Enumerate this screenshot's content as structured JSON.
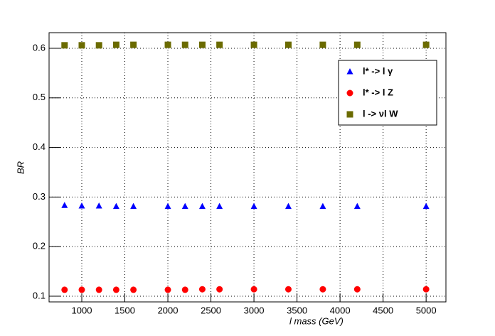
{
  "chart_data": {
    "type": "scatter",
    "x_label": "l mass (GeV)",
    "y_label": "BR",
    "xlim": [
      620,
      5230
    ],
    "ylim": [
      0.0885,
      0.6315
    ],
    "xticks": [
      1000,
      1500,
      2000,
      2500,
      3000,
      3500,
      4000,
      4500,
      5000
    ],
    "yticks": [
      0.1,
      0.2,
      0.3,
      0.4,
      0.5,
      0.6
    ],
    "grid": true,
    "legend": "upper right",
    "x": [
      800,
      1000,
      1200,
      1400,
      1600,
      2000,
      2200,
      2400,
      2600,
      3000,
      3400,
      3800,
      4200,
      5000
    ],
    "series": [
      {
        "name": "l* -> l γ",
        "color": "#0000ff",
        "marker": "triangle",
        "values": [
          0.283,
          0.282,
          0.282,
          0.281,
          0.281,
          0.281,
          0.281,
          0.281,
          0.281,
          0.281,
          0.281,
          0.281,
          0.281,
          0.281
        ]
      },
      {
        "name": "l* -> l Z",
        "color": "#ff0000",
        "marker": "circle",
        "values": [
          0.113,
          0.113,
          0.113,
          0.113,
          0.113,
          0.113,
          0.113,
          0.114,
          0.114,
          0.114,
          0.114,
          0.114,
          0.114,
          0.114
        ]
      },
      {
        "name": "l -> νl W",
        "color": "#6b6b00",
        "marker": "square",
        "values": [
          0.606,
          0.606,
          0.606,
          0.607,
          0.607,
          0.607,
          0.607,
          0.607,
          0.607,
          0.607,
          0.607,
          0.607,
          0.607,
          0.607
        ]
      }
    ]
  }
}
